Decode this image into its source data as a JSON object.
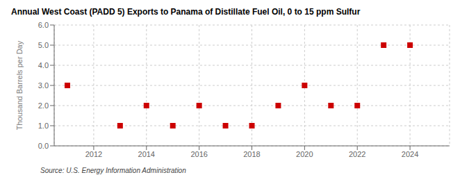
{
  "chart_data": {
    "type": "scatter",
    "title": "Annual West Coast (PADD 5) Exports to Panama of Distillate Fuel Oil, 0 to 15 ppm Sulfur",
    "ylabel": "Thousand Barrels per Day",
    "annotations": [
      "Source: U.S. Energy Information Administration"
    ],
    "x": [
      2011,
      2013,
      2014,
      2015,
      2016,
      2017,
      2018,
      2019,
      2020,
      2021,
      2022,
      2023,
      2024
    ],
    "values": [
      3.0,
      1.0,
      2.0,
      1.0,
      2.0,
      1.0,
      1.0,
      2.0,
      3.0,
      2.0,
      2.0,
      5.0,
      5.0
    ],
    "xlim": [
      2010.5,
      2025.5
    ],
    "ylim": [
      0.0,
      6.0
    ],
    "xticks": [
      2012,
      2014,
      2016,
      2018,
      2020,
      2022,
      2024
    ],
    "yticks": [
      {
        "value": 0.0,
        "label": "0.0"
      },
      {
        "value": 1.0,
        "label": "1.0"
      },
      {
        "value": 2.0,
        "label": "2.0"
      },
      {
        "value": 3.0,
        "label": "3.0"
      },
      {
        "value": 4.0,
        "label": "4.0"
      },
      {
        "value": 5.0,
        "label": "5.0"
      },
      {
        "value": 6.0,
        "label": "6.0"
      }
    ],
    "color": "#cc0000",
    "marker": "square",
    "grid": true
  }
}
